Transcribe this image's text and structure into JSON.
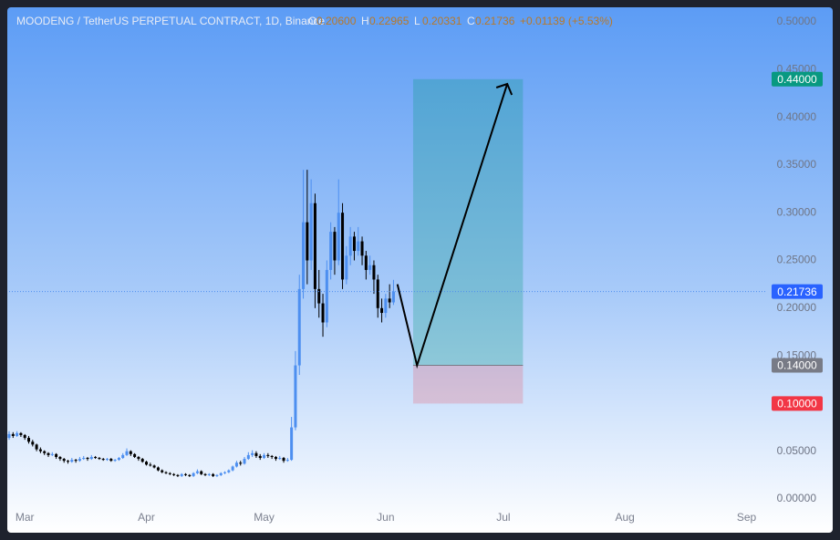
{
  "chart_data": {
    "type": "candlestick",
    "title": "MOODENG / TetherUS PERPETUAL CONTRACT, 1D, Binance",
    "ohlc_legend": [
      {
        "key": "O",
        "value": "0.20600"
      },
      {
        "key": "H",
        "value": "0.22965"
      },
      {
        "key": "L",
        "value": "0.20331"
      },
      {
        "key": "C",
        "value": "0.21736"
      }
    ],
    "change": "+0.01139 (+5.53%)",
    "up_color": "#4d8ff0",
    "down_color": "#000000",
    "open": [
      0.064,
      0.068,
      0.066,
      0.069,
      0.067,
      0.064,
      0.06,
      0.057,
      0.052,
      0.05,
      0.048,
      0.046,
      0.047,
      0.044,
      0.042,
      0.04,
      0.039,
      0.041,
      0.04,
      0.042,
      0.043,
      0.042,
      0.044,
      0.043,
      0.042,
      0.041,
      0.042,
      0.04,
      0.041,
      0.043,
      0.046,
      0.05,
      0.047,
      0.044,
      0.042,
      0.039,
      0.036,
      0.035,
      0.033,
      0.03,
      0.028,
      0.027,
      0.026,
      0.025,
      0.024,
      0.026,
      0.025,
      0.024,
      0.027,
      0.029,
      0.026,
      0.025,
      0.026,
      0.024,
      0.025,
      0.027,
      0.028,
      0.03,
      0.034,
      0.038,
      0.037,
      0.042,
      0.046,
      0.048,
      0.045,
      0.043,
      0.046,
      0.045,
      0.044,
      0.042,
      0.043,
      0.04,
      0.041,
      0.075,
      0.14,
      0.22,
      0.29,
      0.25,
      0.31,
      0.22,
      0.205,
      0.185,
      0.24,
      0.28,
      0.25,
      0.3,
      0.23,
      0.255,
      0.275,
      0.26,
      0.27,
      0.255,
      0.24,
      0.245,
      0.23,
      0.2,
      0.195,
      0.21,
      0.206
    ],
    "high": [
      0.071,
      0.07,
      0.071,
      0.07,
      0.068,
      0.066,
      0.062,
      0.058,
      0.054,
      0.051,
      0.049,
      0.049,
      0.048,
      0.045,
      0.043,
      0.041,
      0.043,
      0.042,
      0.044,
      0.045,
      0.044,
      0.046,
      0.045,
      0.044,
      0.043,
      0.043,
      0.043,
      0.042,
      0.044,
      0.048,
      0.053,
      0.051,
      0.048,
      0.045,
      0.043,
      0.04,
      0.038,
      0.036,
      0.034,
      0.031,
      0.029,
      0.028,
      0.027,
      0.026,
      0.027,
      0.027,
      0.026,
      0.028,
      0.031,
      0.03,
      0.027,
      0.027,
      0.027,
      0.026,
      0.028,
      0.029,
      0.031,
      0.035,
      0.04,
      0.04,
      0.044,
      0.049,
      0.051,
      0.05,
      0.047,
      0.048,
      0.048,
      0.046,
      0.045,
      0.045,
      0.044,
      0.043,
      0.086,
      0.155,
      0.235,
      0.345,
      0.345,
      0.335,
      0.32,
      0.24,
      0.215,
      0.25,
      0.29,
      0.285,
      0.335,
      0.31,
      0.265,
      0.285,
      0.28,
      0.285,
      0.275,
      0.26,
      0.255,
      0.25,
      0.235,
      0.21,
      0.215,
      0.225,
      0.22965
    ],
    "low": [
      0.062,
      0.064,
      0.065,
      0.065,
      0.062,
      0.058,
      0.055,
      0.05,
      0.048,
      0.046,
      0.044,
      0.045,
      0.042,
      0.04,
      0.038,
      0.037,
      0.038,
      0.038,
      0.039,
      0.041,
      0.04,
      0.041,
      0.042,
      0.041,
      0.04,
      0.04,
      0.039,
      0.039,
      0.04,
      0.042,
      0.045,
      0.045,
      0.043,
      0.04,
      0.038,
      0.035,
      0.034,
      0.032,
      0.029,
      0.027,
      0.026,
      0.025,
      0.024,
      0.023,
      0.023,
      0.024,
      0.023,
      0.023,
      0.026,
      0.025,
      0.024,
      0.024,
      0.023,
      0.023,
      0.024,
      0.026,
      0.027,
      0.029,
      0.033,
      0.035,
      0.036,
      0.041,
      0.044,
      0.043,
      0.041,
      0.042,
      0.043,
      0.042,
      0.04,
      0.041,
      0.038,
      0.039,
      0.04,
      0.072,
      0.13,
      0.21,
      0.225,
      0.24,
      0.2,
      0.19,
      0.17,
      0.18,
      0.23,
      0.235,
      0.245,
      0.22,
      0.225,
      0.245,
      0.25,
      0.255,
      0.245,
      0.23,
      0.235,
      0.215,
      0.19,
      0.185,
      0.19,
      0.2,
      0.20331
    ],
    "close": [
      0.068,
      0.066,
      0.069,
      0.067,
      0.064,
      0.06,
      0.057,
      0.052,
      0.05,
      0.048,
      0.046,
      0.047,
      0.044,
      0.042,
      0.04,
      0.039,
      0.041,
      0.04,
      0.042,
      0.043,
      0.042,
      0.044,
      0.043,
      0.042,
      0.041,
      0.042,
      0.04,
      0.041,
      0.043,
      0.046,
      0.05,
      0.047,
      0.044,
      0.042,
      0.039,
      0.036,
      0.035,
      0.033,
      0.03,
      0.028,
      0.027,
      0.026,
      0.025,
      0.024,
      0.026,
      0.025,
      0.024,
      0.027,
      0.029,
      0.026,
      0.025,
      0.026,
      0.024,
      0.025,
      0.027,
      0.028,
      0.03,
      0.034,
      0.038,
      0.037,
      0.042,
      0.046,
      0.048,
      0.045,
      0.043,
      0.046,
      0.045,
      0.044,
      0.042,
      0.043,
      0.04,
      0.041,
      0.075,
      0.14,
      0.22,
      0.29,
      0.25,
      0.31,
      0.22,
      0.205,
      0.185,
      0.24,
      0.28,
      0.25,
      0.3,
      0.23,
      0.255,
      0.275,
      0.26,
      0.27,
      0.255,
      0.24,
      0.245,
      0.23,
      0.2,
      0.195,
      0.21,
      0.206,
      0.21736
    ],
    "xlim": [
      0,
      193
    ],
    "xticks": [
      {
        "value": 4,
        "label": "Mar"
      },
      {
        "value": 35,
        "label": "Apr"
      },
      {
        "value": 65,
        "label": "May"
      },
      {
        "value": 96,
        "label": "Jun"
      },
      {
        "value": 126,
        "label": "Jul"
      },
      {
        "value": 157,
        "label": "Aug"
      },
      {
        "value": 188,
        "label": "Sep"
      }
    ],
    "ylim": [
      0,
      0.51
    ],
    "yticks": [
      {
        "value": 0,
        "label": "0.00000"
      },
      {
        "value": 0.05,
        "label": "0.05000"
      },
      {
        "value": 0.1,
        "label": "0.10000"
      },
      {
        "value": 0.15,
        "label": "0.15000"
      },
      {
        "value": 0.2,
        "label": "0.20000"
      },
      {
        "value": 0.25,
        "label": "0.25000"
      },
      {
        "value": 0.3,
        "label": "0.30000"
      },
      {
        "value": 0.35,
        "label": "0.35000"
      },
      {
        "value": 0.4,
        "label": "0.40000"
      },
      {
        "value": 0.45,
        "label": "0.45000"
      },
      {
        "value": 0.5,
        "label": "0.50000"
      }
    ],
    "position": {
      "x_start": 103,
      "x_end": 131,
      "target": {
        "value": 0.44,
        "label": "0.44000"
      },
      "entry": {
        "value": 0.14,
        "label": "0.14000"
      },
      "stop": {
        "value": 0.1,
        "label": "0.10000"
      }
    },
    "arrow": {
      "x": [
        99,
        104,
        127
      ],
      "y": [
        0.225,
        0.14,
        0.435
      ]
    }
  }
}
